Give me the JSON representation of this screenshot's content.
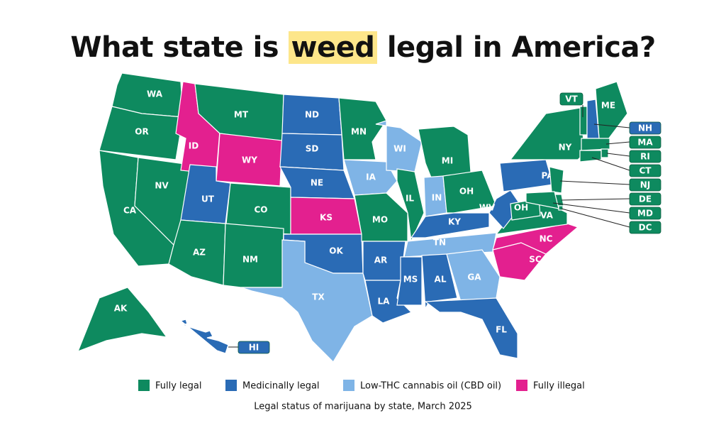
{
  "title": {
    "before": "What state is",
    "highlight": "weed",
    "after": "legal in America?"
  },
  "legend": [
    {
      "key": "legal",
      "label": "Fully legal",
      "color": "#0e8a5f"
    },
    {
      "key": "medical",
      "label": "Medicinally legal",
      "color": "#2a6bb5"
    },
    {
      "key": "cbd",
      "label": "Low-THC cannabis oil (CBD oil)",
      "color": "#7fb4e6"
    },
    {
      "key": "illegal",
      "label": "Fully illegal",
      "color": "#e3208f"
    }
  ],
  "states": [
    {
      "label": "WA",
      "status": "legal"
    },
    {
      "label": "OR",
      "status": "legal"
    },
    {
      "label": "CA",
      "status": "legal"
    },
    {
      "label": "NV",
      "status": "legal"
    },
    {
      "label": "ID",
      "status": "illegal"
    },
    {
      "label": "MT",
      "status": "legal"
    },
    {
      "label": "WY",
      "status": "illegal"
    },
    {
      "label": "UT",
      "status": "medical"
    },
    {
      "label": "CO",
      "status": "legal"
    },
    {
      "label": "AZ",
      "status": "legal"
    },
    {
      "label": "NM",
      "status": "legal"
    },
    {
      "label": "ND",
      "status": "medical"
    },
    {
      "label": "SD",
      "status": "medical"
    },
    {
      "label": "NE",
      "status": "medical"
    },
    {
      "label": "KS",
      "status": "illegal"
    },
    {
      "label": "OK",
      "status": "medical"
    },
    {
      "label": "TX",
      "status": "cbd"
    },
    {
      "label": "MN",
      "status": "legal"
    },
    {
      "label": "IA",
      "status": "cbd"
    },
    {
      "label": "MO",
      "status": "legal"
    },
    {
      "label": "AR",
      "status": "medical"
    },
    {
      "label": "LA",
      "status": "medical"
    },
    {
      "label": "WI",
      "status": "cbd"
    },
    {
      "label": "IL",
      "status": "legal"
    },
    {
      "label": "MI",
      "status": "legal"
    },
    {
      "label": "IN",
      "status": "cbd"
    },
    {
      "label": "OH",
      "status": "legal"
    },
    {
      "label": "KY",
      "status": "medical"
    },
    {
      "label": "TN",
      "status": "cbd"
    },
    {
      "label": "MS",
      "status": "medical"
    },
    {
      "label": "AL",
      "status": "medical"
    },
    {
      "label": "GA",
      "status": "cbd"
    },
    {
      "label": "FL",
      "status": "medical"
    },
    {
      "label": "SC",
      "status": "illegal"
    },
    {
      "label": "NC",
      "status": "illegal"
    },
    {
      "label": "VA",
      "status": "legal"
    },
    {
      "label": "WV",
      "status": "medical"
    },
    {
      "label": "OH",
      "status": "legal"
    },
    {
      "label": "PA",
      "status": "medical"
    },
    {
      "label": "NY",
      "status": "legal"
    },
    {
      "label": "ME",
      "status": "legal"
    },
    {
      "label": "AK",
      "status": "legal"
    },
    {
      "label": "VT",
      "status": "legal"
    },
    {
      "label": "NH",
      "status": "medical"
    },
    {
      "label": "MA",
      "status": "legal"
    },
    {
      "label": "RI",
      "status": "legal"
    },
    {
      "label": "CT",
      "status": "legal"
    },
    {
      "label": "NJ",
      "status": "legal"
    },
    {
      "label": "DE",
      "status": "legal"
    },
    {
      "label": "MD",
      "status": "legal"
    },
    {
      "label": "DC",
      "status": "legal"
    },
    {
      "label": "HI",
      "status": "medical"
    }
  ],
  "caption": "Legal status of marijuana by state, March 2025"
}
